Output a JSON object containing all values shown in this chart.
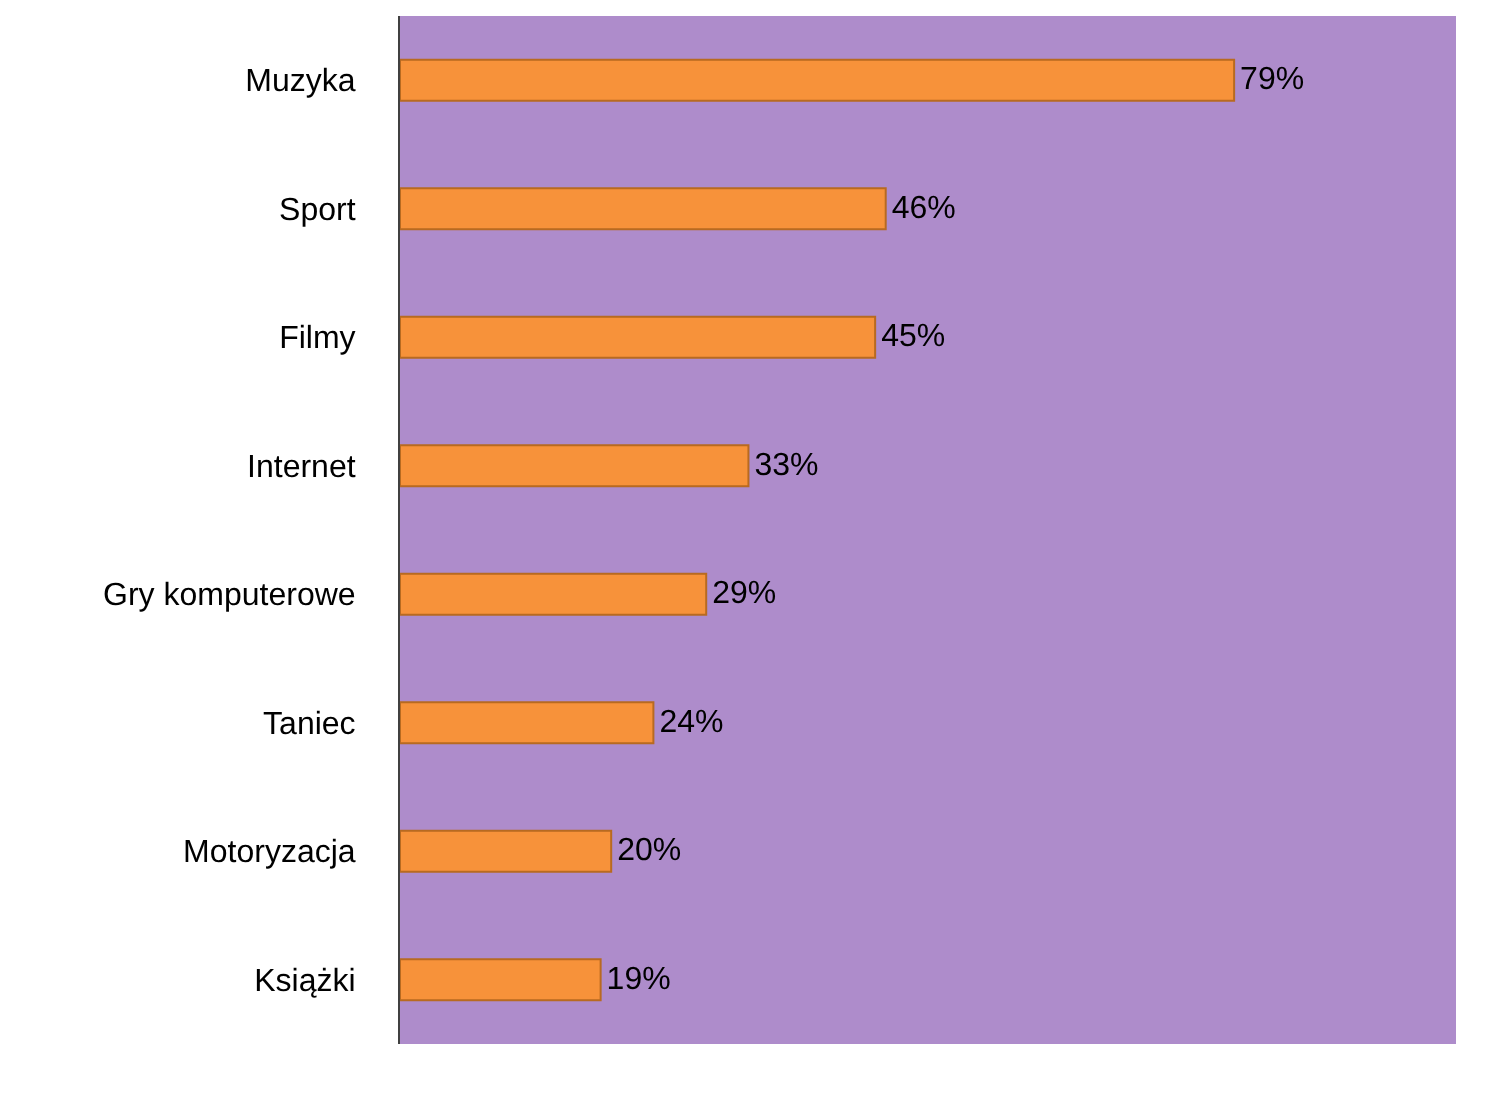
{
  "chart_data": {
    "type": "bar",
    "orientation": "horizontal",
    "categories": [
      "Muzyka",
      "Sport",
      "Filmy",
      "Internet",
      "Gry komputerowe",
      "Taniec",
      "Motoryzacja",
      "Książki"
    ],
    "values": [
      79,
      46,
      45,
      33,
      29,
      24,
      20,
      19
    ],
    "value_labels": [
      "79%",
      "46%",
      "45%",
      "33%",
      "29%",
      "24%",
      "20%",
      "19%"
    ],
    "color": "#f7923a",
    "grid": false,
    "legend": false,
    "tick_labels": "y"
  }
}
